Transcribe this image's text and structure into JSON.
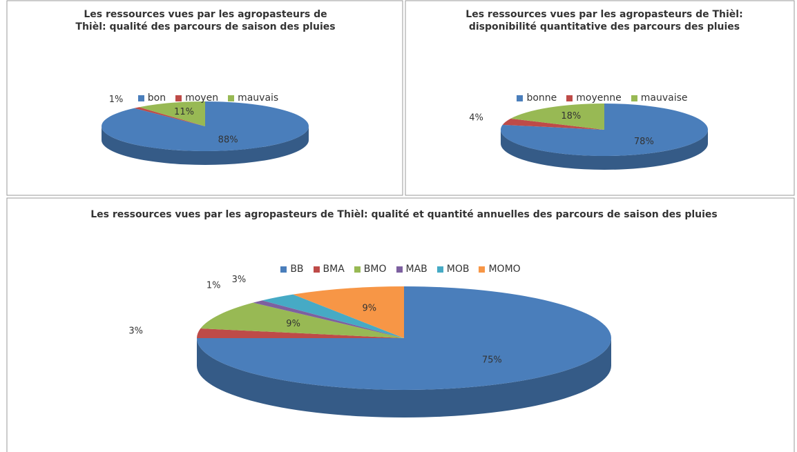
{
  "chart_data": [
    {
      "type": "pie",
      "title": "Les ressources vues par les agropasteurs de Thièl: qualité des parcours de saison des pluies",
      "categories": [
        "bon",
        "moyen",
        "mauvais"
      ],
      "values": [
        88,
        1,
        11
      ],
      "value_labels": [
        "88%",
        "1%",
        "11%"
      ],
      "colors": [
        "#4a7ebb",
        "#be4b48",
        "#98b954"
      ]
    },
    {
      "type": "pie",
      "title": "Les ressources vues par les agropasteurs de Thièl: disponibilité quantitative des parcours des pluies",
      "categories": [
        "bonne",
        "moyenne",
        "mauvaise"
      ],
      "values": [
        78,
        4,
        18
      ],
      "value_labels": [
        "78%",
        "4%",
        "18%"
      ],
      "colors": [
        "#4a7ebb",
        "#be4b48",
        "#98b954"
      ]
    },
    {
      "type": "pie",
      "title": "Les ressources vues par les agropasteurs de Thièl: qualité et quantité annuelles des parcours de saison des pluies",
      "categories": [
        "BB",
        "BMA",
        "BMO",
        "MAB",
        "MOB",
        "MOMO"
      ],
      "values": [
        75,
        3,
        9,
        1,
        3,
        9
      ],
      "value_labels": [
        "75%",
        "3%",
        "9%",
        "1%",
        "3%",
        "9%"
      ],
      "colors": [
        "#4a7ebb",
        "#be4b48",
        "#98b954",
        "#7d60a0",
        "#46aac5",
        "#f79646"
      ]
    }
  ]
}
